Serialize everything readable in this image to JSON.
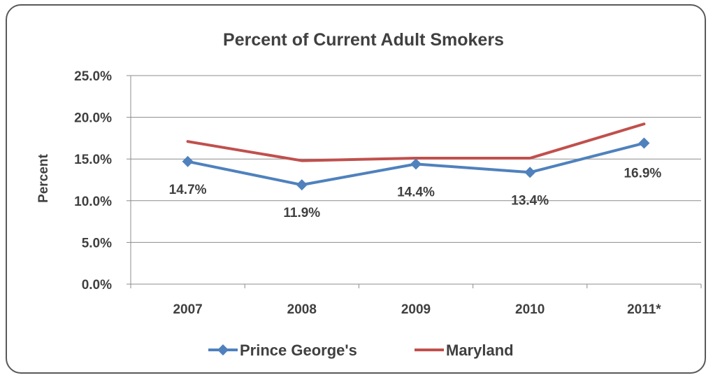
{
  "chart_data": {
    "type": "line",
    "title": "Percent of Current Adult Smokers",
    "xlabel": "",
    "ylabel": "Percent",
    "categories": [
      "2007",
      "2008",
      "2009",
      "2010",
      "2011*"
    ],
    "ylim": [
      0,
      25
    ],
    "yticks": [
      "0.0%",
      "5.0%",
      "10.0%",
      "15.0%",
      "20.0%",
      "25.0%"
    ],
    "grid": true,
    "legend_position": "bottom",
    "series": [
      {
        "name": "Prince George's",
        "values": [
          14.7,
          11.9,
          14.4,
          13.4,
          16.9
        ],
        "labels": [
          "14.7%",
          "11.9%",
          "14.4%",
          "13.4%",
          "16.9%"
        ],
        "color": "#4f81bd",
        "marker": "diamond"
      },
      {
        "name": "Maryland",
        "values": [
          17.1,
          14.8,
          15.1,
          15.1,
          19.2
        ],
        "color": "#c0504d",
        "marker": "none"
      }
    ]
  }
}
